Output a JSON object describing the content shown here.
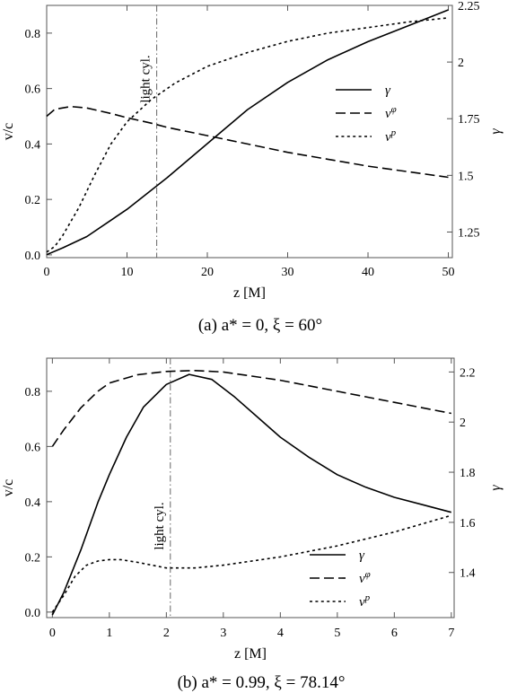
{
  "chart_data": [
    {
      "type": "line",
      "caption": "(a)  a* = 0,    ξ = 60°",
      "xlabel": "z [M]",
      "ylabel": "v/c",
      "y2label": "γ",
      "xlim": [
        0,
        50.5
      ],
      "ylim": [
        -0.01,
        0.9
      ],
      "y2lim": [
        1.137,
        2.25
      ],
      "xticks": [
        "0",
        "10",
        "20",
        "30",
        "40",
        "50"
      ],
      "yticks": [
        "0.0",
        "0.2",
        "0.4",
        "0.6",
        "0.8"
      ],
      "y2ticks": [
        "1.25",
        "1.5",
        "1.75",
        "2",
        "2.25"
      ],
      "vline": {
        "x": 13.7,
        "label": "light cyl."
      },
      "legend_position": "middle-right",
      "legend": [
        "γ",
        "vφ",
        "vp"
      ],
      "series": [
        {
          "name": "γ",
          "axis": "right",
          "style": "solid",
          "x": [
            0,
            2,
            5,
            10,
            15,
            20,
            25,
            30,
            35,
            40,
            45,
            50
          ],
          "y": [
            1.15,
            1.18,
            1.23,
            1.35,
            1.49,
            1.64,
            1.79,
            1.91,
            2.01,
            2.09,
            2.16,
            2.23
          ]
        },
        {
          "name": "vφ",
          "axis": "left",
          "style": "dashed",
          "x": [
            0,
            1,
            3,
            5,
            8,
            10,
            13,
            15,
            20,
            25,
            30,
            35,
            40,
            45,
            50
          ],
          "y": [
            0.5,
            0.525,
            0.535,
            0.53,
            0.51,
            0.495,
            0.475,
            0.46,
            0.43,
            0.4,
            0.37,
            0.345,
            0.32,
            0.3,
            0.28
          ]
        },
        {
          "name": "vp",
          "axis": "left",
          "style": "dotted",
          "x": [
            0,
            1,
            2,
            4,
            6,
            8,
            10,
            13,
            16,
            20,
            25,
            30,
            35,
            40,
            45,
            50
          ],
          "y": [
            0.01,
            0.03,
            0.07,
            0.17,
            0.29,
            0.4,
            0.48,
            0.56,
            0.62,
            0.68,
            0.73,
            0.77,
            0.8,
            0.82,
            0.84,
            0.855
          ]
        }
      ]
    },
    {
      "type": "line",
      "caption": "(b)  a* = 0.99,    ξ = 78.14°",
      "xlabel": "z [M]",
      "ylabel": "v/c",
      "y2label": "γ",
      "xlim": [
        -0.1,
        7.05
      ],
      "ylim": [
        -0.02,
        0.92
      ],
      "y2lim": [
        1.22,
        2.255
      ],
      "xticks": [
        "0",
        "1",
        "2",
        "3",
        "4",
        "5",
        "6",
        "7"
      ],
      "yticks": [
        "0.0",
        "0.2",
        "0.4",
        "0.6",
        "0.8"
      ],
      "y2ticks": [
        "1.4",
        "1.6",
        "1.8",
        "2",
        "2.2"
      ],
      "vline": {
        "x": 2.07,
        "label": "light cyl."
      },
      "legend_position": "bottom-right",
      "legend": [
        "γ",
        "vφ",
        "vp"
      ],
      "series": [
        {
          "name": "γ",
          "axis": "right",
          "style": "solid",
          "x": [
            0,
            0.2,
            0.5,
            0.8,
            1.0,
            1.3,
            1.6,
            2.0,
            2.4,
            2.8,
            3.2,
            3.6,
            4.0,
            4.5,
            5.0,
            5.5,
            6.0,
            6.5,
            7.0
          ],
          "y": [
            1.23,
            1.32,
            1.49,
            1.68,
            1.79,
            1.94,
            2.06,
            2.15,
            2.19,
            2.17,
            2.1,
            2.02,
            1.94,
            1.86,
            1.79,
            1.74,
            1.7,
            1.67,
            1.64
          ]
        },
        {
          "name": "vφ",
          "axis": "left",
          "style": "dashed",
          "x": [
            0,
            0.2,
            0.5,
            0.8,
            1.0,
            1.5,
            2.0,
            2.5,
            3.0,
            3.5,
            4.0,
            5.0,
            6.0,
            7.0
          ],
          "y": [
            0.6,
            0.66,
            0.74,
            0.8,
            0.83,
            0.86,
            0.872,
            0.875,
            0.87,
            0.855,
            0.84,
            0.8,
            0.76,
            0.72
          ]
        },
        {
          "name": "vp",
          "axis": "left",
          "style": "dotted",
          "x": [
            0,
            0.2,
            0.4,
            0.6,
            0.8,
            1.0,
            1.2,
            1.5,
            2.0,
            2.5,
            3.0,
            3.5,
            4.0,
            5.0,
            6.0,
            7.0
          ],
          "y": [
            0.0,
            0.06,
            0.13,
            0.17,
            0.185,
            0.19,
            0.19,
            0.18,
            0.16,
            0.16,
            0.17,
            0.185,
            0.2,
            0.24,
            0.29,
            0.35
          ]
        }
      ]
    }
  ]
}
